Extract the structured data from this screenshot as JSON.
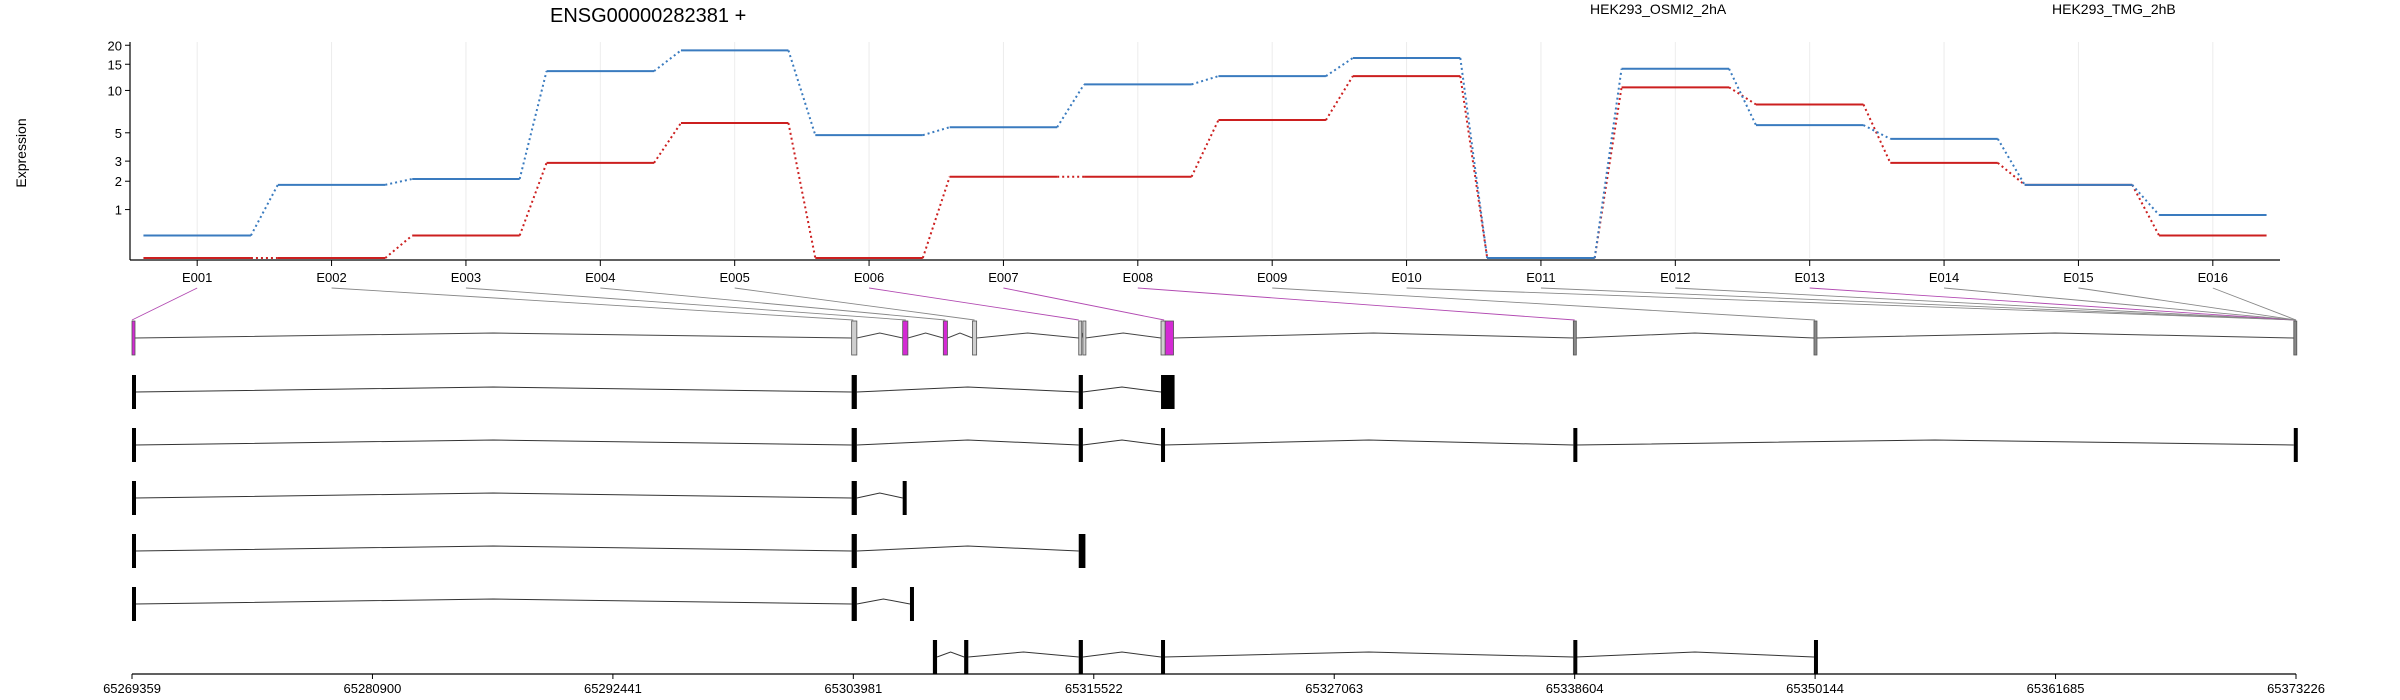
{
  "chart_data": {
    "type": "line",
    "title": "ENSG00000282381 +",
    "ylabel": "Expression",
    "yscale": "log1p",
    "ylim": [
      0,
      21
    ],
    "yticks": [
      1,
      2,
      3,
      5,
      10,
      15,
      20
    ],
    "grid": true,
    "legend_position": "top-right",
    "categories": [
      "E001",
      "E002",
      "E003",
      "E004",
      "E005",
      "E006",
      "E007",
      "E008",
      "E009",
      "E010",
      "E011",
      "E012",
      "E013",
      "E014",
      "E015",
      "E016"
    ],
    "series": [
      {
        "name": "HEK293_OSMI2_2hA",
        "color": "#cc1f1f",
        "values": [
          0.0,
          0.0,
          0.38,
          2.9,
          5.9,
          0.0,
          2.2,
          2.2,
          6.2,
          12.5,
          0.0,
          10.5,
          8.0,
          2.9,
          1.85,
          0.38
        ]
      },
      {
        "name": "HEK293_TMG_2hB",
        "color": "#3a7bbf",
        "values": [
          0.38,
          1.85,
          2.1,
          13.5,
          18.5,
          4.8,
          5.5,
          11.0,
          12.5,
          16.5,
          0.0,
          14.0,
          5.7,
          4.5,
          1.85,
          0.85
        ]
      }
    ],
    "genomic_axis": {
      "range": [
        65269359,
        65373226
      ],
      "tick_labels": [
        "65269359",
        "65280900",
        "65292441",
        "65303981",
        "65315522",
        "65327063",
        "65338604",
        "65350144",
        "65361685",
        "65373226"
      ]
    },
    "exon_positions": [
      65269359,
      65303981,
      65306500,
      65308400,
      65309800,
      65314800,
      65318900,
      65338604,
      65350144,
      65373226
    ],
    "exon_track": [
      {
        "start": 65269359,
        "end": 65269500,
        "fill": "#d42ad4"
      },
      {
        "start": 65303900,
        "end": 65304150,
        "fill": "#cfcfcf"
      },
      {
        "start": 65306350,
        "end": 65306600,
        "fill": "#d42ad4"
      },
      {
        "start": 65308300,
        "end": 65308500,
        "fill": "#d42ad4"
      },
      {
        "start": 65309700,
        "end": 65309900,
        "fill": "#cfcfcf"
      },
      {
        "start": 65314800,
        "end": 65314900,
        "fill": "#cfcfcf"
      },
      {
        "start": 65315000,
        "end": 65315120,
        "fill": "#cfcfcf"
      },
      {
        "start": 65318750,
        "end": 65318950,
        "fill": "#cfcfcf"
      },
      {
        "start": 65318950,
        "end": 65319350,
        "fill": "#d42ad4"
      },
      {
        "start": 65338540,
        "end": 65338660,
        "fill": "#888888"
      },
      {
        "start": 65350090,
        "end": 65350200,
        "fill": "#888888"
      },
      {
        "start": 65373120,
        "end": 65373226,
        "fill": "#888888"
      }
    ],
    "transcripts": [
      [
        [
          65269359,
          65269500
        ],
        [
          65303900,
          65304150
        ],
        [
          65314800,
          65315000
        ],
        [
          65318750,
          65319400
        ]
      ],
      [
        [
          65269359,
          65269500
        ],
        [
          65303900,
          65304150
        ],
        [
          65314800,
          65315000
        ],
        [
          65318750,
          65318900
        ],
        [
          65338540,
          65338660
        ],
        [
          65373120,
          65373226
        ]
      ],
      [
        [
          65269359,
          65269500
        ],
        [
          65303900,
          65304150
        ],
        [
          65306350,
          65306500
        ]
      ],
      [
        [
          65269359,
          65269500
        ],
        [
          65303900,
          65304150
        ],
        [
          65314800,
          65315120
        ]
      ],
      [
        [
          65269359,
          65269500
        ],
        [
          65303900,
          65304150
        ],
        [
          65306700,
          65306750
        ]
      ],
      [
        [
          65307800,
          65308000
        ],
        [
          65309300,
          65309500
        ],
        [
          65314800,
          65315000
        ],
        [
          65318750,
          65318900
        ],
        [
          65338540,
          65338660
        ],
        [
          65350090,
          65350200
        ]
      ]
    ]
  }
}
